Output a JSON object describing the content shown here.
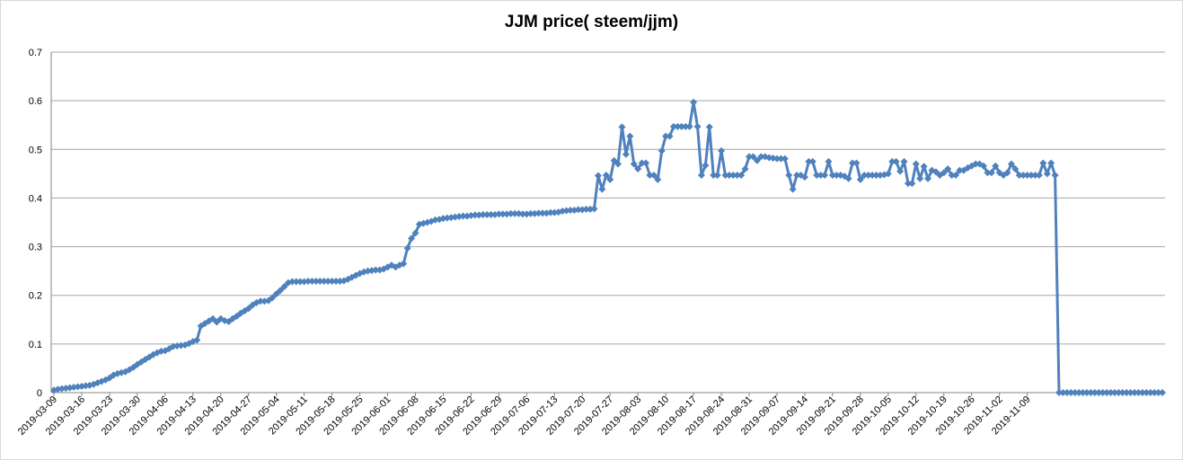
{
  "chart_data": {
    "type": "line",
    "title": "JJM price( steem/jjm)",
    "xlabel": "",
    "ylabel": "",
    "ylim": [
      0,
      0.7
    ],
    "yticks": [
      "0",
      "0.1",
      "0.2",
      "0.3",
      "0.4",
      "0.5",
      "0.6",
      "0.7"
    ],
    "grid": "horizontal",
    "legend": "none",
    "color": "#4f81bd",
    "marker": "diamond",
    "x_start": "2019-03-09",
    "x_tick_labels": [
      "2019-03-09",
      "2019-03-16",
      "2019-03-23",
      "2019-03-30",
      "2019-04-06",
      "2019-04-13",
      "2019-04-20",
      "2019-04-27",
      "2019-05-04",
      "2019-05-11",
      "2019-05-18",
      "2019-05-25",
      "2019-06-01",
      "2019-06-08",
      "2019-06-15",
      "2019-06-22",
      "2019-06-29",
      "2019-07-06",
      "2019-07-13",
      "2019-07-20",
      "2019-07-27",
      "2019-08-03",
      "2019-08-10",
      "2019-08-17",
      "2019-08-24",
      "2019-08-31",
      "2019-09-07",
      "2019-09-14",
      "2019-09-21",
      "2019-09-28",
      "2019-10-05",
      "2019-10-12",
      "2019-10-19",
      "2019-10-26",
      "2019-11-02",
      "2019-11-09"
    ],
    "series": [
      {
        "values": [
          0.005,
          0.007,
          0.008,
          0.009,
          0.01,
          0.011,
          0.012,
          0.013,
          0.014,
          0.015,
          0.017,
          0.02,
          0.023,
          0.026,
          0.03,
          0.036,
          0.039,
          0.041,
          0.043,
          0.047,
          0.052,
          0.058,
          0.063,
          0.068,
          0.073,
          0.078,
          0.082,
          0.085,
          0.086,
          0.09,
          0.095,
          0.096,
          0.097,
          0.098,
          0.101,
          0.105,
          0.108,
          0.137,
          0.142,
          0.147,
          0.152,
          0.145,
          0.152,
          0.148,
          0.146,
          0.152,
          0.157,
          0.163,
          0.168,
          0.173,
          0.18,
          0.185,
          0.188,
          0.188,
          0.189,
          0.195,
          0.203,
          0.21,
          0.218,
          0.226,
          0.228,
          0.228,
          0.228,
          0.228,
          0.229,
          0.229,
          0.229,
          0.229,
          0.229,
          0.229,
          0.229,
          0.229,
          0.229,
          0.23,
          0.233,
          0.237,
          0.241,
          0.245,
          0.248,
          0.25,
          0.251,
          0.252,
          0.252,
          0.254,
          0.258,
          0.262,
          0.258,
          0.262,
          0.265,
          0.297,
          0.317,
          0.328,
          0.346,
          0.348,
          0.35,
          0.352,
          0.355,
          0.356,
          0.358,
          0.359,
          0.36,
          0.361,
          0.362,
          0.363,
          0.363,
          0.364,
          0.365,
          0.365,
          0.366,
          0.366,
          0.366,
          0.366,
          0.367,
          0.367,
          0.367,
          0.368,
          0.368,
          0.368,
          0.367,
          0.367,
          0.368,
          0.368,
          0.369,
          0.369,
          0.369,
          0.37,
          0.37,
          0.371,
          0.373,
          0.374,
          0.375,
          0.375,
          0.376,
          0.376,
          0.377,
          0.377,
          0.378,
          0.446,
          0.418,
          0.447,
          0.438,
          0.477,
          0.47,
          0.546,
          0.49,
          0.527,
          0.47,
          0.46,
          0.472,
          0.472,
          0.447,
          0.447,
          0.438,
          0.497,
          0.527,
          0.527,
          0.547,
          0.547,
          0.547,
          0.547,
          0.547,
          0.597,
          0.547,
          0.447,
          0.467,
          0.546,
          0.447,
          0.447,
          0.497,
          0.447,
          0.447,
          0.447,
          0.447,
          0.447,
          0.46,
          0.485,
          0.485,
          0.477,
          0.485,
          0.485,
          0.483,
          0.482,
          0.481,
          0.481,
          0.481,
          0.447,
          0.418,
          0.447,
          0.447,
          0.443,
          0.475,
          0.475,
          0.447,
          0.447,
          0.447,
          0.475,
          0.447,
          0.447,
          0.447,
          0.445,
          0.44,
          0.472,
          0.472,
          0.438,
          0.447,
          0.447,
          0.447,
          0.447,
          0.447,
          0.448,
          0.45,
          0.475,
          0.475,
          0.455,
          0.475,
          0.43,
          0.43,
          0.47,
          0.44,
          0.465,
          0.44,
          0.457,
          0.454,
          0.447,
          0.452,
          0.46,
          0.447,
          0.447,
          0.457,
          0.457,
          0.462,
          0.466,
          0.47,
          0.47,
          0.466,
          0.452,
          0.452,
          0.466,
          0.452,
          0.447,
          0.452,
          0.47,
          0.46,
          0.447,
          0.447,
          0.447,
          0.447,
          0.447,
          0.447,
          0.472,
          0.45,
          0.472,
          0.447,
          0,
          0,
          0,
          0,
          0,
          0,
          0,
          0,
          0,
          0,
          0,
          0,
          0,
          0,
          0,
          0,
          0,
          0,
          0,
          0,
          0,
          0,
          0,
          0,
          0,
          0,
          0
        ]
      }
    ]
  }
}
